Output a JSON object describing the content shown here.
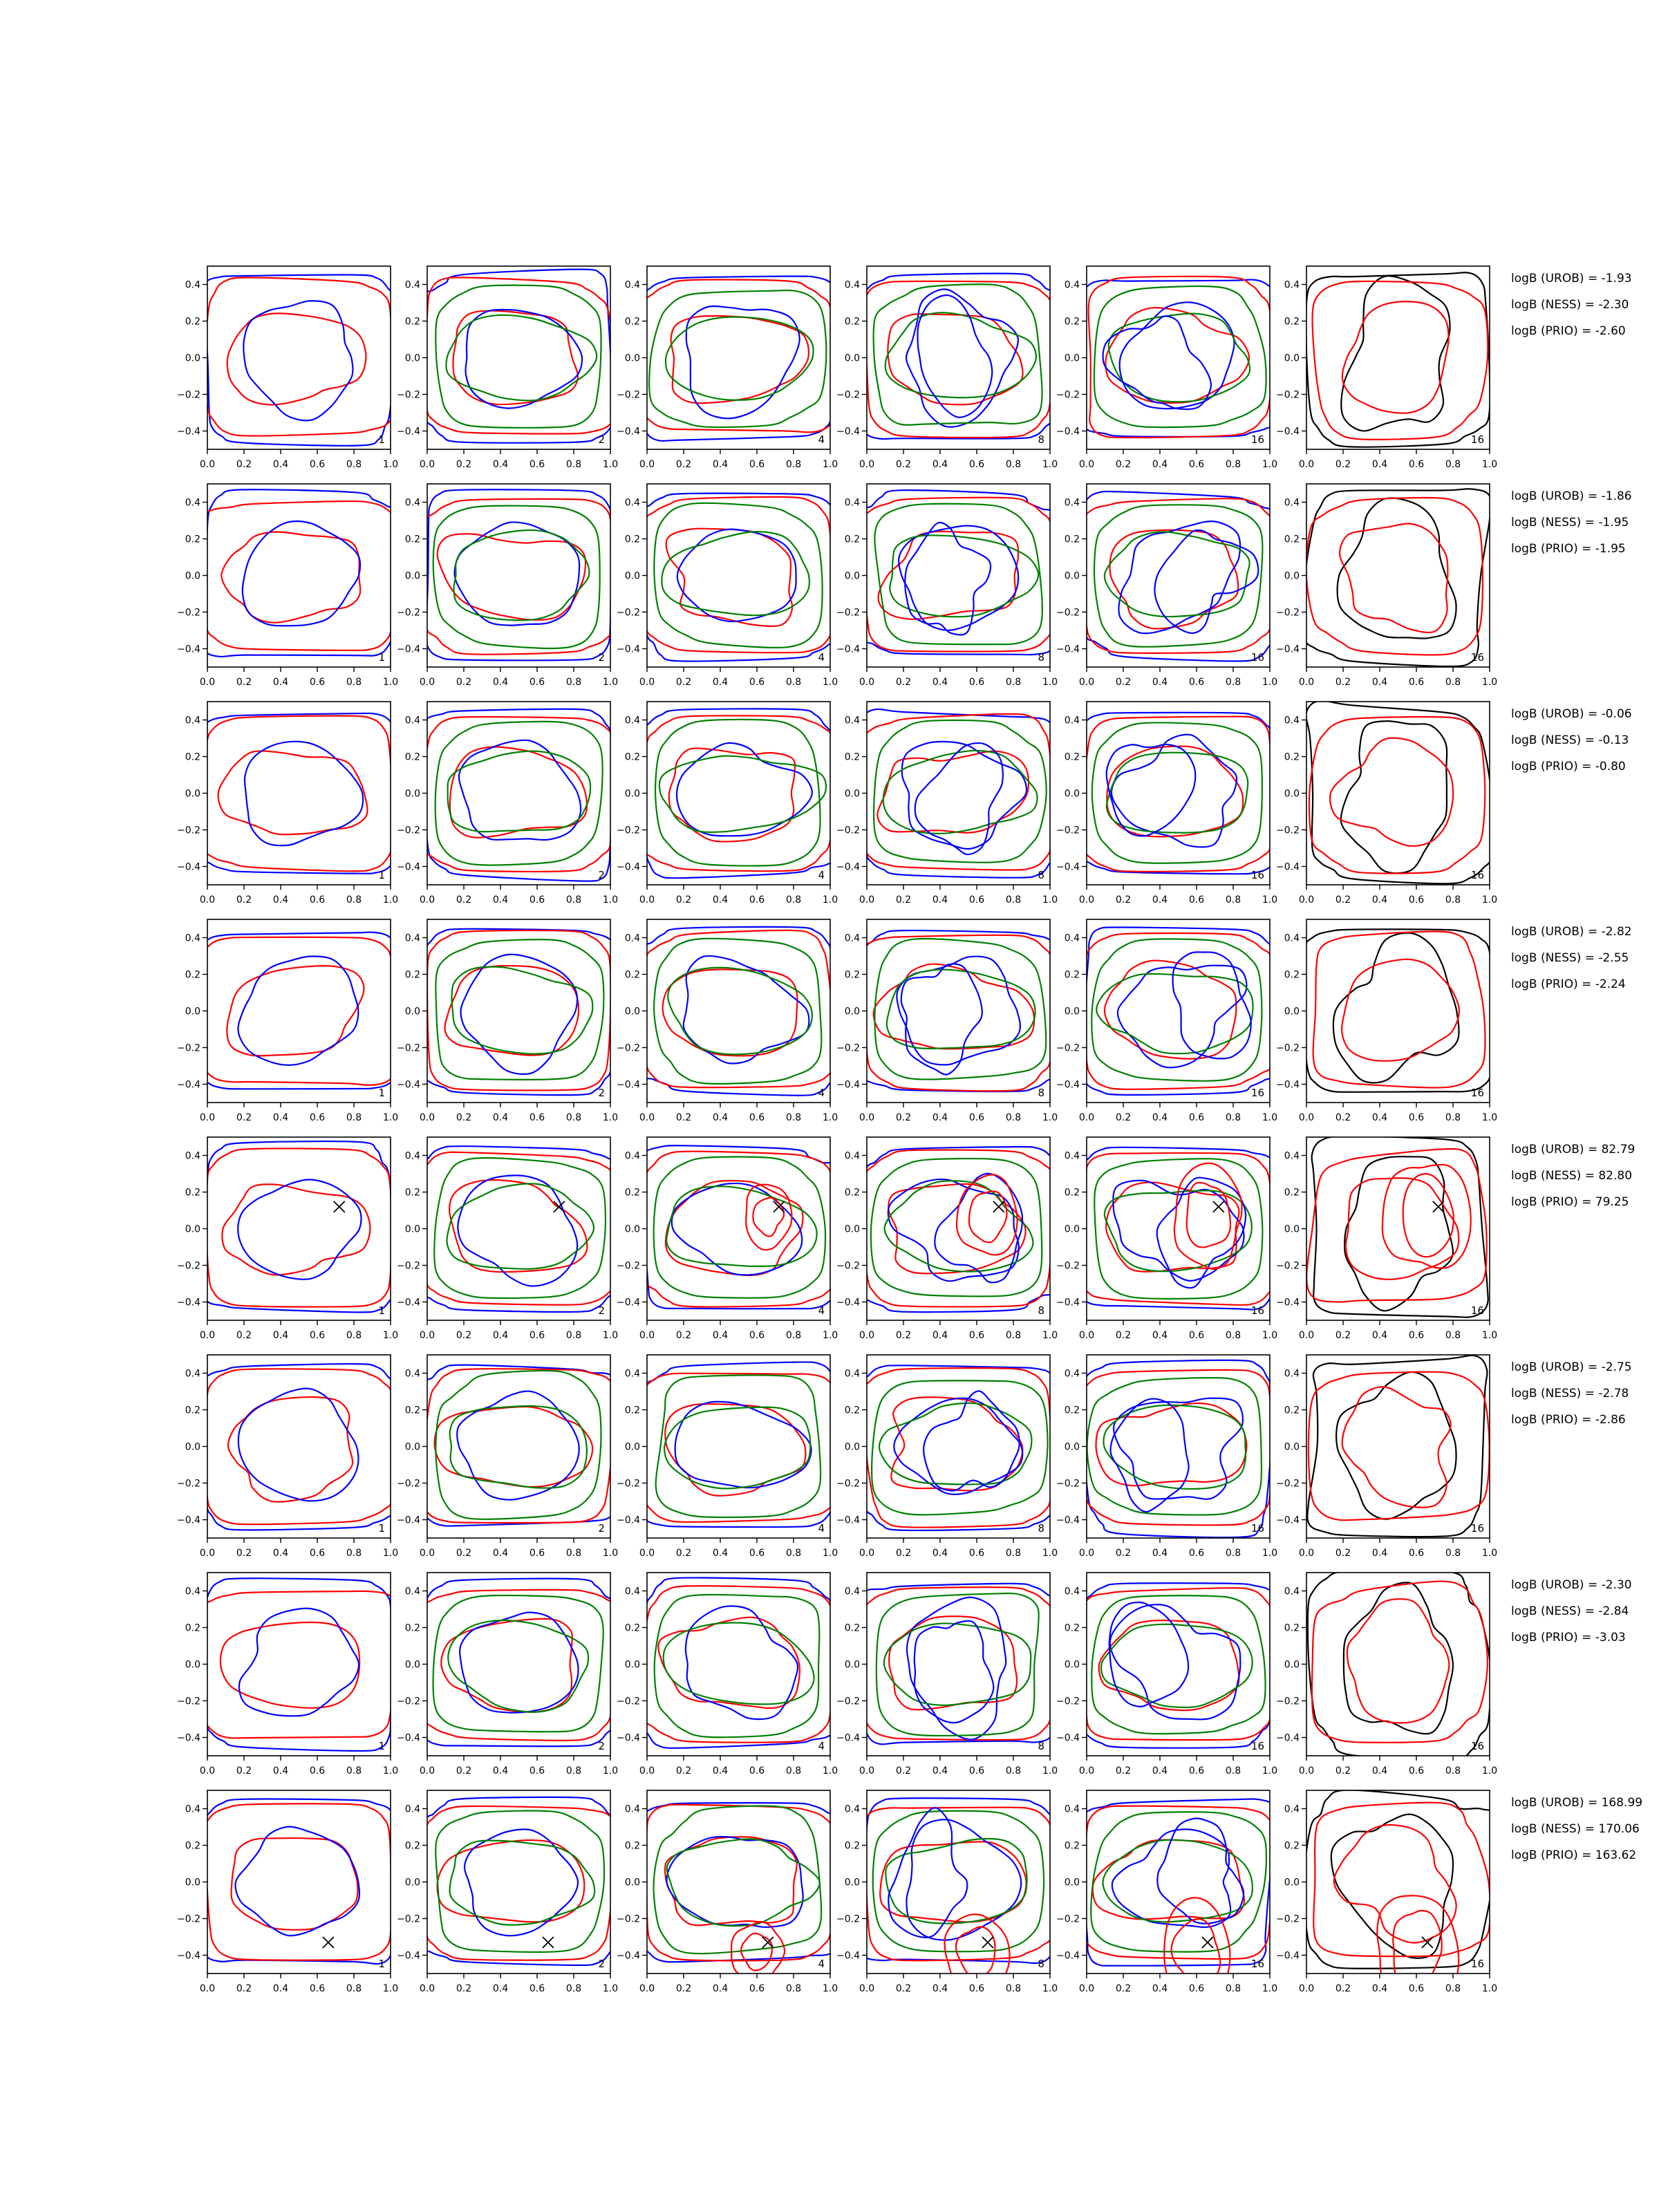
{
  "chart_data": {
    "type": "contour-grid",
    "xlim": [
      0.0,
      1.0
    ],
    "ylim": [
      -0.5,
      0.5
    ],
    "x_ticks": [
      "0.0",
      "0.2",
      "0.4",
      "0.6",
      "0.8",
      "1.0"
    ],
    "y_ticks": [
      "−0.4",
      "−0.2",
      "0.0",
      "0.2",
      "0.4"
    ],
    "column_labels": [
      "1",
      "2",
      "4",
      "8",
      "16",
      "16"
    ],
    "colors": {
      "blue": "#0000ff",
      "green": "#008000",
      "red": "#ff0000",
      "black": "#000000"
    },
    "rows": [
      {
        "bayes": [
          "logB (UROB) = -1.93",
          "logB (NESS) = -2.30",
          "logB (PRIO) = -2.60"
        ],
        "marker": null
      },
      {
        "bayes": [
          "logB (UROB) = -1.86",
          "logB (NESS) = -1.95",
          "logB (PRIO) = -1.95"
        ],
        "marker": null
      },
      {
        "bayes": [
          "logB (UROB) = -0.06",
          "logB (NESS) = -0.13",
          "logB (PRIO) = -0.80"
        ],
        "marker": null
      },
      {
        "bayes": [
          "logB (UROB) = -2.82",
          "logB (NESS) = -2.55",
          "logB (PRIO) = -2.24"
        ],
        "marker": null
      },
      {
        "bayes": [
          "logB (UROB) = 82.79",
          "logB (NESS) = 82.80",
          "logB (PRIO) = 79.25"
        ],
        "marker": {
          "x": 0.72,
          "y": 0.12
        }
      },
      {
        "bayes": [
          "logB (UROB) = -2.75",
          "logB (NESS) = -2.78",
          "logB (PRIO) = -2.86"
        ],
        "marker": null
      },
      {
        "bayes": [
          "logB (UROB) = -2.30",
          "logB (NESS) = -2.84",
          "logB (PRIO) = -3.03"
        ],
        "marker": null
      },
      {
        "bayes": [
          "logB (UROB) = 168.99",
          "logB (NESS) = 170.06",
          "logB (PRIO) = 163.62"
        ],
        "marker": {
          "x": 0.66,
          "y": -0.33
        }
      }
    ]
  }
}
